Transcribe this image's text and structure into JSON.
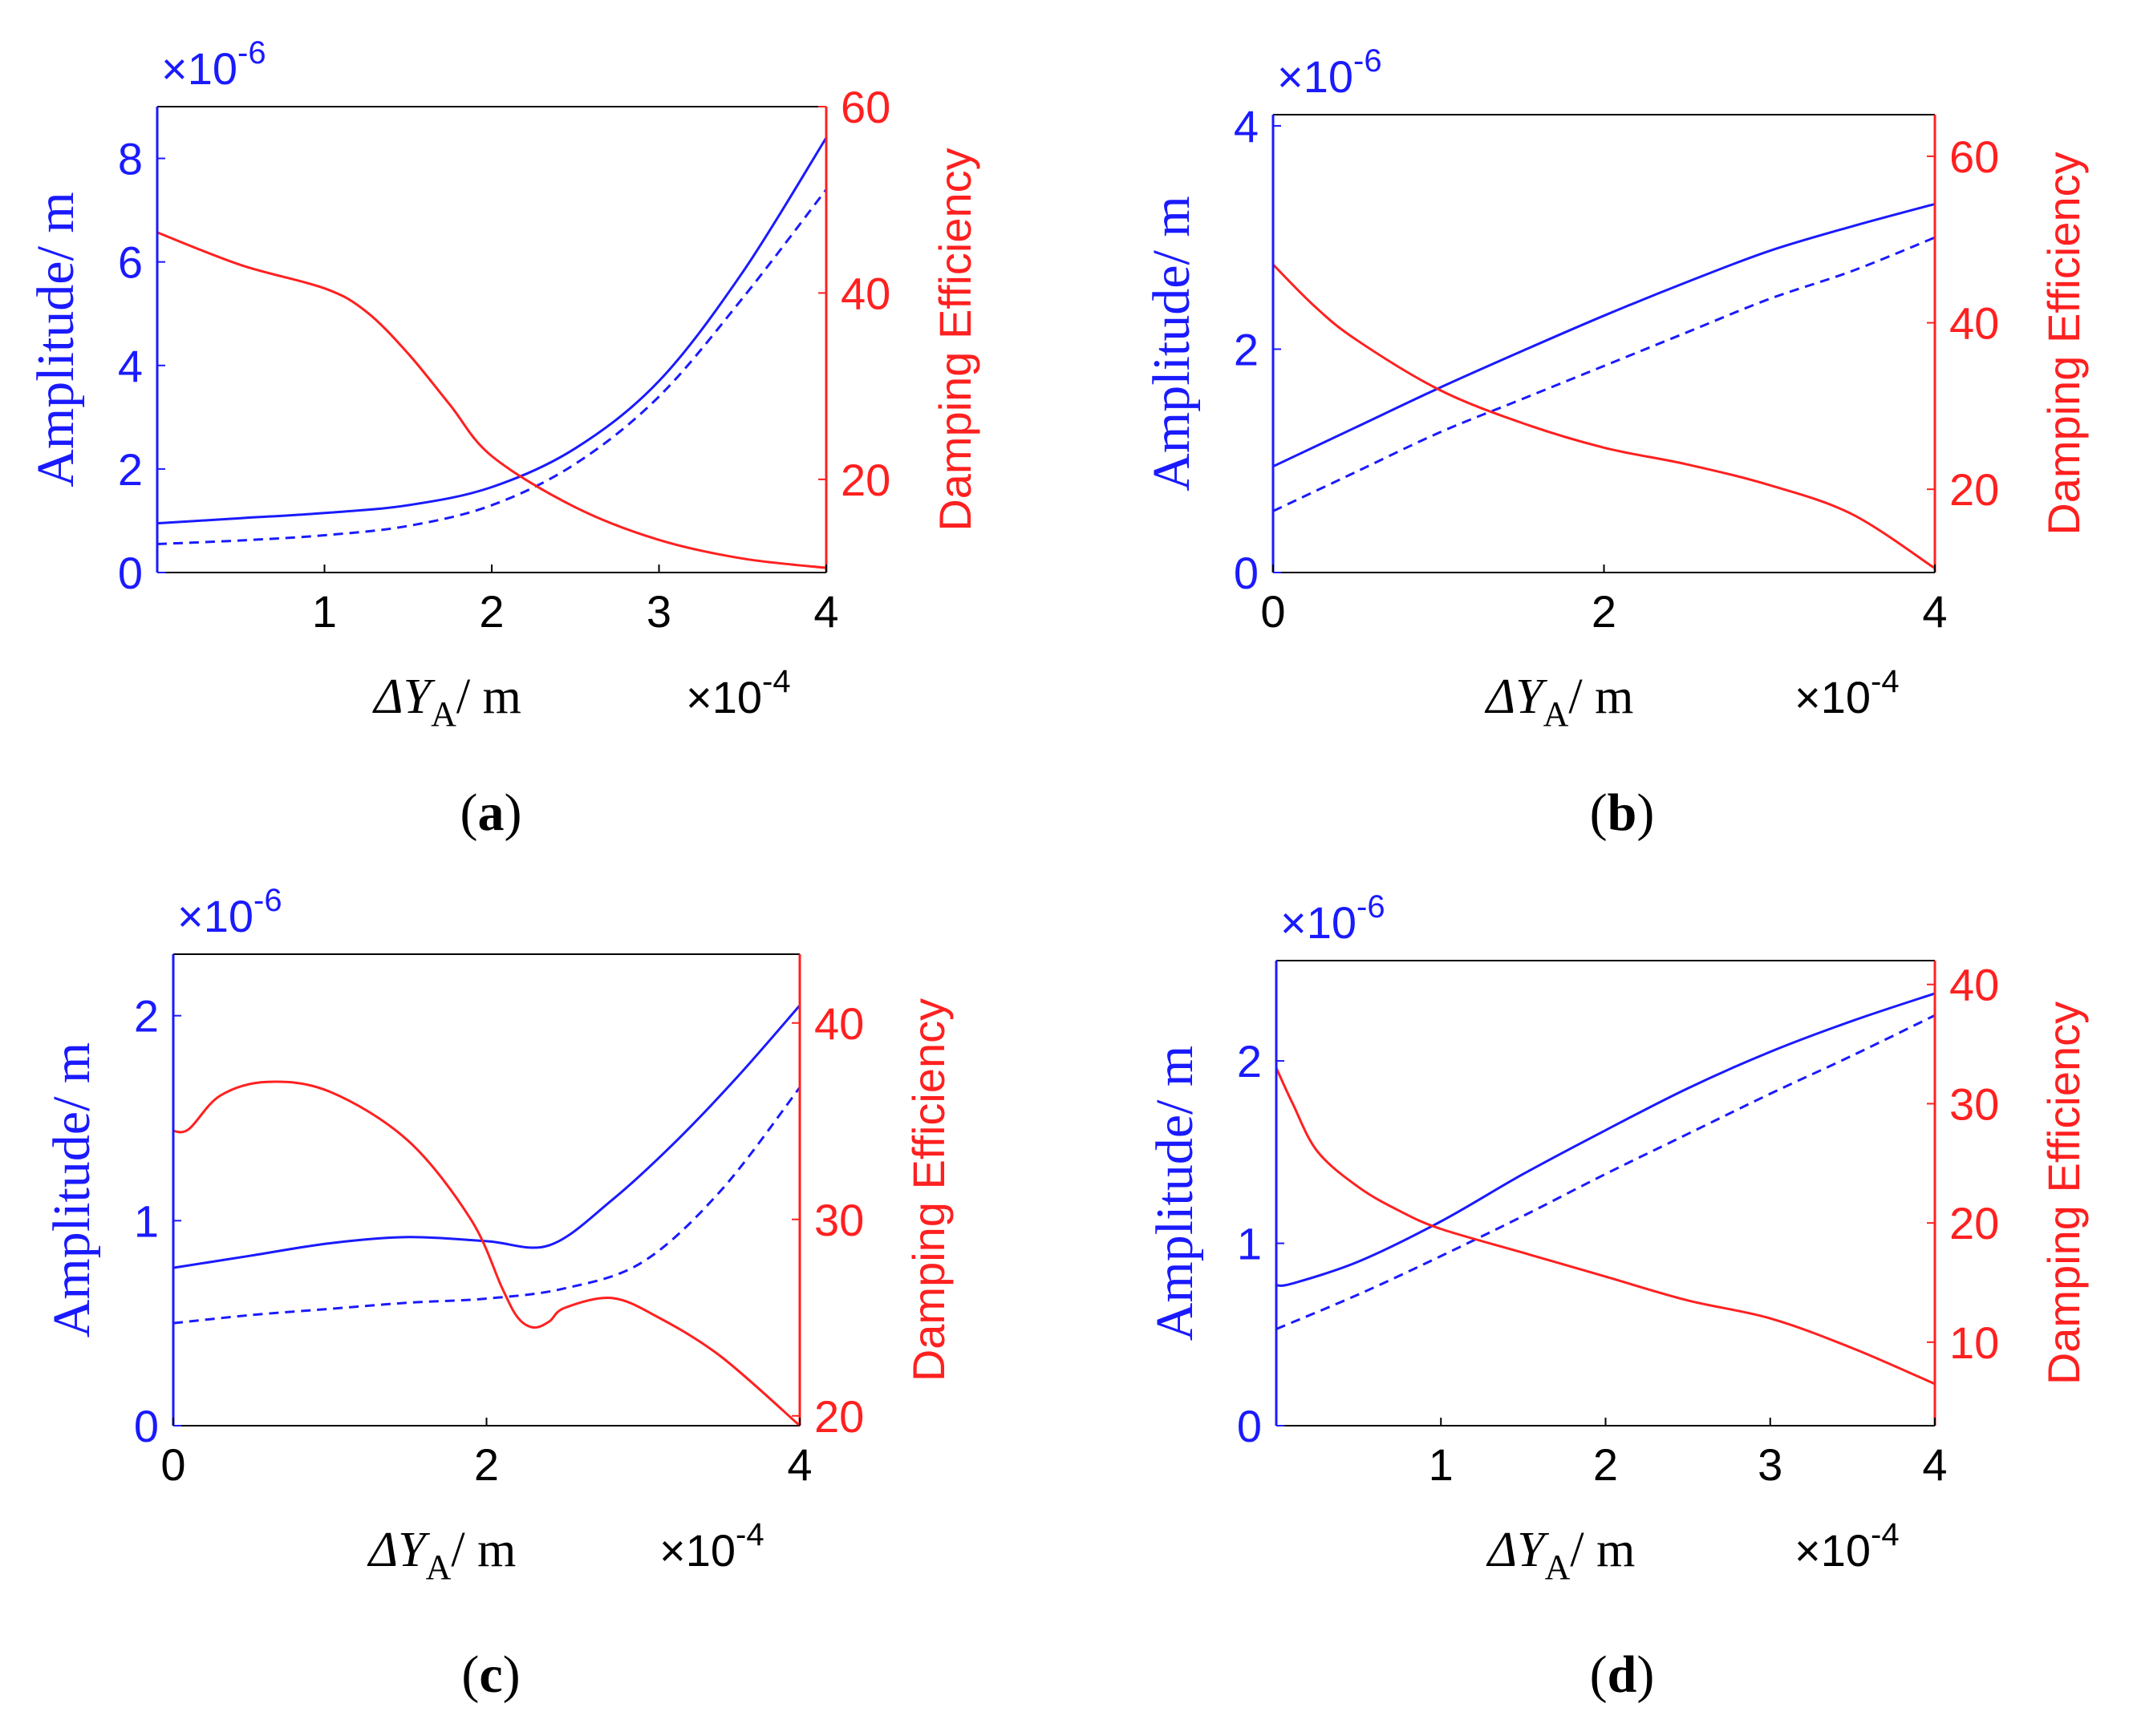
{
  "figure": {
    "colors": {
      "amplitude": "#1a1aff",
      "efficiency": "#ff2020",
      "axis": "#000000"
    },
    "common": {
      "left_ylabel": "Amplitude/  m",
      "right_ylabel": "Damping Efficiency",
      "xlabel_delta": "ΔY",
      "xlabel_sub": "A",
      "xlabel_unit": "/ m",
      "x_multiplier_times": "×10",
      "x_multiplier_exp": "-4",
      "y_multiplier_times": "×10",
      "y_multiplier_exp": "-6"
    }
  },
  "chart_data": [
    {
      "id": "a",
      "label_open": "(",
      "label_letter": "a",
      "label_close": ")",
      "type": "line",
      "xlim": [
        0,
        4
      ],
      "xticks": [
        1,
        2,
        3,
        4
      ],
      "ylim_left": [
        0,
        9
      ],
      "yticks_left": [
        0,
        2,
        4,
        6,
        8
      ],
      "ylim_right": [
        10,
        60
      ],
      "yticks_right": [
        20,
        40,
        60
      ],
      "series": [
        {
          "name": "Amplitude (solid)",
          "axis": "left",
          "style": "solid",
          "x": [
            0,
            0.5,
            1,
            1.5,
            2,
            2.5,
            3,
            3.5,
            4
          ],
          "y": [
            0.95,
            1.05,
            1.15,
            1.3,
            1.65,
            2.4,
            3.7,
            5.8,
            8.4
          ]
        },
        {
          "name": "Amplitude (dashed)",
          "axis": "left",
          "style": "dashed",
          "x": [
            0,
            0.5,
            1,
            1.5,
            2,
            2.5,
            3,
            3.5,
            4
          ],
          "y": [
            0.55,
            0.62,
            0.72,
            0.9,
            1.3,
            2.1,
            3.4,
            5.3,
            7.4
          ]
        },
        {
          "name": "Damping Efficiency",
          "axis": "right",
          "style": "solid",
          "x": [
            0,
            0.5,
            1,
            1.25,
            1.5,
            1.75,
            2,
            2.5,
            3,
            3.5,
            4
          ],
          "y": [
            46.5,
            43,
            40.5,
            38,
            33.5,
            28,
            22.5,
            17,
            13.5,
            11.5,
            10.5
          ]
        }
      ]
    },
    {
      "id": "b",
      "label_open": "(",
      "label_letter": "b",
      "label_close": ")",
      "type": "line",
      "xlim": [
        0,
        4
      ],
      "xticks": [
        0,
        2,
        4
      ],
      "ylim_left": [
        0,
        4.1
      ],
      "yticks_left": [
        0,
        2,
        4
      ],
      "ylim_right": [
        10,
        65
      ],
      "yticks_right": [
        20,
        40,
        60
      ],
      "series": [
        {
          "name": "Amplitude (solid)",
          "axis": "left",
          "style": "solid",
          "x": [
            0,
            0.5,
            1,
            1.5,
            2,
            2.5,
            3,
            3.5,
            4
          ],
          "y": [
            0.95,
            1.3,
            1.65,
            1.98,
            2.3,
            2.6,
            2.88,
            3.1,
            3.3
          ]
        },
        {
          "name": "Amplitude (dashed)",
          "axis": "left",
          "style": "dashed",
          "x": [
            0,
            0.5,
            1,
            1.5,
            2,
            2.5,
            3,
            3.5,
            4
          ],
          "y": [
            0.55,
            0.9,
            1.25,
            1.55,
            1.85,
            2.15,
            2.45,
            2.7,
            3.0
          ]
        },
        {
          "name": "Damping Efficiency",
          "axis": "right",
          "style": "solid",
          "x": [
            0,
            0.25,
            0.5,
            1,
            1.5,
            2,
            2.5,
            3,
            3.5,
            4
          ],
          "y": [
            47,
            42,
            38,
            32,
            28,
            25,
            23,
            20.5,
            17,
            10.5
          ]
        }
      ]
    },
    {
      "id": "c",
      "label_open": "(",
      "label_letter": "c",
      "label_close": ")",
      "type": "line",
      "xlim": [
        0,
        4
      ],
      "xticks": [
        0,
        2,
        4
      ],
      "ylim_left": [
        0,
        2.3
      ],
      "yticks_left": [
        0,
        1,
        2
      ],
      "ylim_right": [
        19.5,
        43.5
      ],
      "yticks_right": [
        20,
        30,
        40
      ],
      "series": [
        {
          "name": "Amplitude (solid)",
          "axis": "left",
          "style": "solid",
          "x": [
            0,
            0.5,
            1,
            1.5,
            2,
            2.4,
            2.8,
            3.2,
            3.6,
            4
          ],
          "y": [
            0.77,
            0.83,
            0.89,
            0.92,
            0.9,
            0.88,
            1.1,
            1.38,
            1.7,
            2.05
          ]
        },
        {
          "name": "Amplitude (dashed)",
          "axis": "left",
          "style": "dashed",
          "x": [
            0,
            0.5,
            1,
            1.5,
            2,
            2.5,
            3,
            3.5,
            4
          ],
          "y": [
            0.5,
            0.54,
            0.57,
            0.6,
            0.62,
            0.67,
            0.8,
            1.15,
            1.65
          ]
        },
        {
          "name": "Damping Efficiency",
          "axis": "right",
          "style": "solid",
          "x": [
            0,
            0.1,
            0.3,
            0.6,
            1.0,
            1.5,
            1.9,
            2.1,
            2.2,
            2.3,
            2.4,
            2.5,
            2.8,
            3.1,
            3.5,
            4
          ],
          "y": [
            34.5,
            34.6,
            36.3,
            37,
            36.5,
            34,
            30,
            26.5,
            25,
            24.5,
            24.8,
            25.5,
            26,
            25,
            23,
            19.5
          ]
        }
      ]
    },
    {
      "id": "d",
      "label_open": "(",
      "label_letter": "d",
      "label_close": ")",
      "type": "line",
      "xlim": [
        0,
        4
      ],
      "xticks": [
        1,
        2,
        3,
        4
      ],
      "ylim_left": [
        0,
        2.55
      ],
      "yticks_left": [
        0,
        1,
        2
      ],
      "ylim_right": [
        3,
        42
      ],
      "yticks_right": [
        10,
        20,
        30,
        40
      ],
      "series": [
        {
          "name": "Amplitude (solid)",
          "axis": "left",
          "style": "solid",
          "x": [
            0,
            0.1,
            0.5,
            1,
            1.5,
            2,
            2.5,
            3,
            3.5,
            4
          ],
          "y": [
            0.77,
            0.78,
            0.9,
            1.12,
            1.38,
            1.62,
            1.85,
            2.05,
            2.22,
            2.37
          ]
        },
        {
          "name": "Amplitude (dashed)",
          "axis": "left",
          "style": "dashed",
          "x": [
            0,
            0.5,
            1,
            1.5,
            2,
            2.5,
            3,
            3.5,
            4
          ],
          "y": [
            0.53,
            0.72,
            0.93,
            1.15,
            1.38,
            1.6,
            1.82,
            2.03,
            2.25
          ]
        },
        {
          "name": "Damping Efficiency",
          "axis": "right",
          "style": "solid",
          "x": [
            0,
            0.1,
            0.25,
            0.5,
            0.75,
            1,
            1.5,
            2,
            2.5,
            3,
            3.5,
            4
          ],
          "y": [
            33,
            30,
            26,
            23,
            21,
            19.5,
            17.5,
            15.5,
            13.5,
            12,
            9.5,
            6.5
          ]
        }
      ]
    }
  ]
}
